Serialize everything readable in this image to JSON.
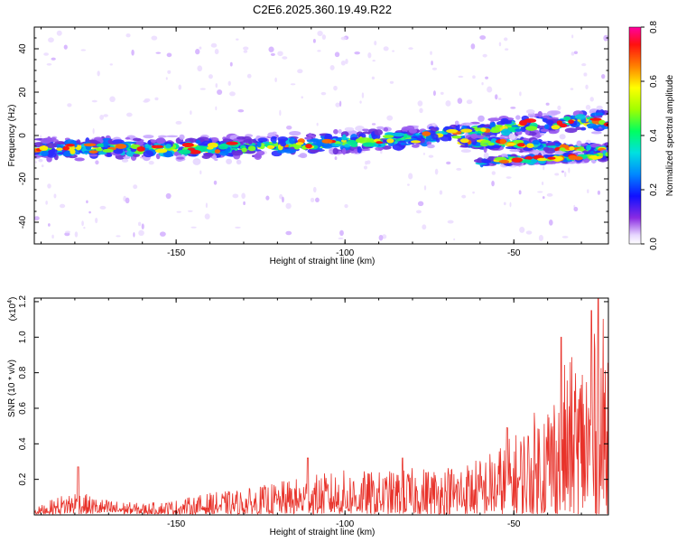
{
  "chart_data": [
    {
      "type": "heatmap",
      "title": "C2E6.2025.360.19.49.R22",
      "xlabel": "Height of straight line (km)",
      "ylabel": "Frequency (Hz)",
      "xlim": [
        -192,
        -22
      ],
      "ylim": [
        -50,
        50
      ],
      "x_ticks": [
        -150,
        -100,
        -50
      ],
      "x_tick_labels": [
        "-150",
        "-100",
        "-50"
      ],
      "y_ticks": [
        -40,
        -20,
        0,
        20,
        40
      ],
      "y_tick_labels": [
        "-40",
        "-20",
        "0",
        "20",
        "40"
      ],
      "colorbar": {
        "label": "Normalized spectral amplitude",
        "range": [
          0.0,
          0.8
        ],
        "ticks": [
          0.0,
          0.2,
          0.4,
          0.6,
          0.8
        ],
        "tick_labels": [
          "0.0",
          "0.2",
          "0.4",
          "0.6",
          "0.8"
        ]
      },
      "bands": [
        {
          "name": "main-band",
          "points": [
            [
              -192,
              -6
            ],
            [
              -150,
              -6
            ],
            [
              -120,
              -5
            ],
            [
              -100,
              -3
            ],
            [
              -80,
              -1
            ],
            [
              -60,
              2
            ],
            [
              -45,
              5
            ],
            [
              -22,
              7
            ]
          ],
          "spread": 5
        },
        {
          "name": "lower-branch",
          "points": [
            [
              -65,
              -3
            ],
            [
              -50,
              -4
            ],
            [
              -35,
              -6
            ],
            [
              -22,
              -7
            ]
          ],
          "spread": 3
        },
        {
          "name": "lowest-branch",
          "points": [
            [
              -60,
              -12
            ],
            [
              -45,
              -11
            ],
            [
              -30,
              -10
            ],
            [
              -22,
              -9
            ]
          ],
          "spread": 2
        }
      ]
    },
    {
      "type": "line",
      "title": "",
      "xlabel": "Height of straight line (km)",
      "ylabel": "SNR (10 * v/v)",
      "multiplier_label": "(x10",
      "multiplier_exp": "4",
      "multiplier_close": ")",
      "xlim": [
        -192,
        -22
      ],
      "ylim": [
        0,
        1.22
      ],
      "x_ticks": [
        -150,
        -100,
        -50
      ],
      "x_tick_labels": [
        "-150",
        "-100",
        "-50"
      ],
      "y_ticks": [
        0.2,
        0.4,
        0.6,
        0.8,
        1.0,
        1.2
      ],
      "y_tick_labels": [
        "0.2",
        "0.4",
        "0.6",
        "0.8",
        "1.0",
        "1.2"
      ],
      "series": [
        {
          "name": "SNR",
          "color": "#e8322a",
          "envelope": [
            [
              -192,
              0.03
            ],
            [
              -185,
              0.1
            ],
            [
              -180,
              0.14
            ],
            [
              -175,
              0.1
            ],
            [
              -170,
              0.08
            ],
            [
              -160,
              0.06
            ],
            [
              -150,
              0.08
            ],
            [
              -140,
              0.12
            ],
            [
              -130,
              0.14
            ],
            [
              -120,
              0.18
            ],
            [
              -110,
              0.22
            ],
            [
              -100,
              0.25
            ],
            [
              -90,
              0.24
            ],
            [
              -80,
              0.26
            ],
            [
              -70,
              0.28
            ],
            [
              -60,
              0.32
            ],
            [
              -50,
              0.45
            ],
            [
              -45,
              0.55
            ],
            [
              -40,
              0.7
            ],
            [
              -35,
              0.85
            ],
            [
              -30,
              0.95
            ],
            [
              -25,
              1.05
            ],
            [
              -22,
              1.18
            ]
          ],
          "peaks": [
            [
              -179,
              0.27
            ],
            [
              -111,
              0.32
            ],
            [
              -83,
              0.32
            ],
            [
              -52,
              0.49
            ],
            [
              -36,
              1.0
            ],
            [
              -27,
              1.15
            ],
            [
              -25,
              1.22
            ]
          ]
        }
      ]
    }
  ]
}
